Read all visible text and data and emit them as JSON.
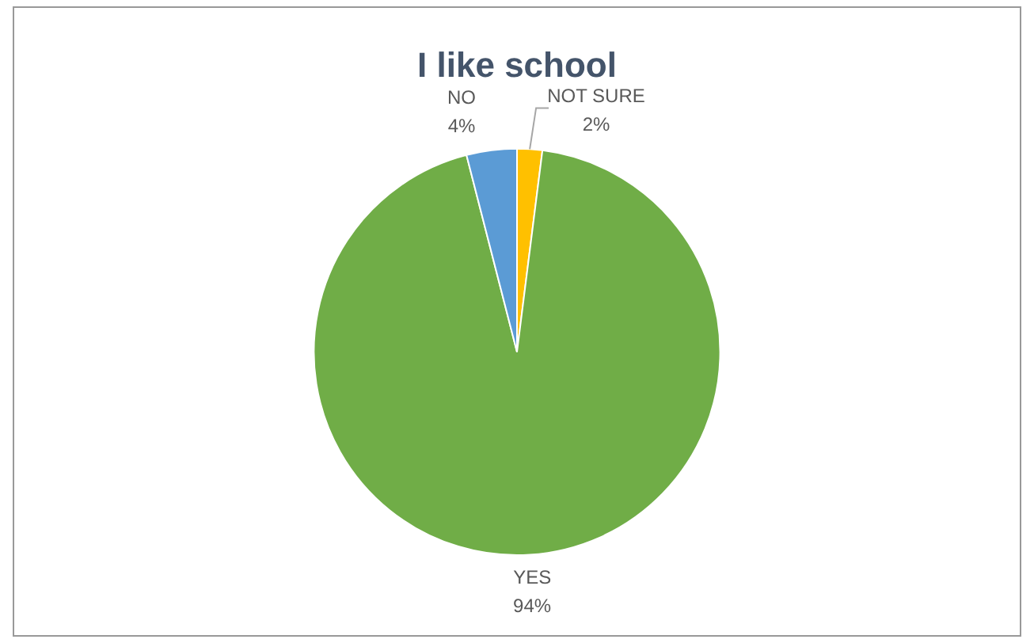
{
  "chart_data": {
    "type": "pie",
    "title": "I like school",
    "categories": [
      "NOT SURE",
      "YES",
      "NO"
    ],
    "values": [
      2,
      94,
      4
    ],
    "colors": [
      "#ffc000",
      "#70ad47",
      "#5b9bd5"
    ],
    "value_labels": [
      "2%",
      "94%",
      "4%"
    ],
    "legend": false
  }
}
